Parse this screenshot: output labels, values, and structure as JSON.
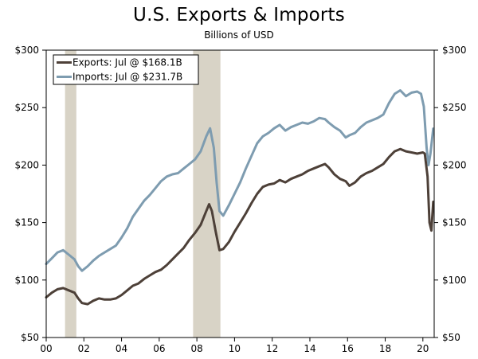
{
  "chart_data": {
    "type": "line",
    "title": "U.S. Exports & Imports",
    "subtitle": "Billions of USD",
    "xlabel": "",
    "ylabel": "",
    "xlim": [
      2000,
      2020.6
    ],
    "ylim": [
      50,
      300
    ],
    "x_ticks": [
      {
        "value": 2000,
        "label": "00"
      },
      {
        "value": 2002,
        "label": "02"
      },
      {
        "value": 2004,
        "label": "04"
      },
      {
        "value": 2006,
        "label": "06"
      },
      {
        "value": 2008,
        "label": "08"
      },
      {
        "value": 2010,
        "label": "10"
      },
      {
        "value": 2012,
        "label": "12"
      },
      {
        "value": 2014,
        "label": "14"
      },
      {
        "value": 2016,
        "label": "16"
      },
      {
        "value": 2018,
        "label": "18"
      },
      {
        "value": 2020,
        "label": "20"
      }
    ],
    "y_ticks": [
      {
        "value": 50,
        "label": "$50"
      },
      {
        "value": 100,
        "label": "$100"
      },
      {
        "value": 150,
        "label": "$150"
      },
      {
        "value": 200,
        "label": "$200"
      },
      {
        "value": 250,
        "label": "$250"
      },
      {
        "value": 300,
        "label": "$300"
      }
    ],
    "recessions": [
      [
        2001.0,
        2001.6
      ],
      [
        2007.8,
        2009.25
      ]
    ],
    "legend_position": "top-left",
    "series": [
      {
        "name": "Exports",
        "legend": "Exports: Jul @ $168.1B",
        "color": "#4d4038",
        "x": [
          2000.0,
          2000.3,
          2000.6,
          2000.9,
          2001.2,
          2001.5,
          2001.7,
          2001.9,
          2002.2,
          2002.5,
          2002.8,
          2003.1,
          2003.4,
          2003.7,
          2004.0,
          2004.3,
          2004.6,
          2004.9,
          2005.2,
          2005.5,
          2005.8,
          2006.1,
          2006.4,
          2006.7,
          2007.0,
          2007.3,
          2007.6,
          2007.9,
          2008.2,
          2008.5,
          2008.65,
          2008.8,
          2009.0,
          2009.2,
          2009.4,
          2009.7,
          2010.0,
          2010.3,
          2010.6,
          2010.9,
          2011.2,
          2011.5,
          2011.8,
          2012.1,
          2012.4,
          2012.7,
          2013.0,
          2013.3,
          2013.6,
          2013.9,
          2014.2,
          2014.5,
          2014.8,
          2015.0,
          2015.3,
          2015.6,
          2015.9,
          2016.1,
          2016.4,
          2016.7,
          2017.0,
          2017.3,
          2017.6,
          2017.9,
          2018.2,
          2018.5,
          2018.8,
          2019.1,
          2019.4,
          2019.7,
          2020.0,
          2020.1,
          2020.25,
          2020.35,
          2020.45,
          2020.55
        ],
        "values": [
          85,
          89,
          92,
          93,
          91,
          89,
          84,
          80,
          79,
          82,
          84,
          83,
          83,
          84,
          87,
          91,
          95,
          97,
          101,
          104,
          107,
          109,
          113,
          118,
          123,
          128,
          135,
          141,
          148,
          160,
          166,
          160,
          142,
          126,
          127,
          133,
          142,
          150,
          158,
          167,
          175,
          181,
          183,
          184,
          187,
          185,
          188,
          190,
          192,
          195,
          197,
          199,
          201,
          198,
          192,
          188,
          186,
          182,
          185,
          190,
          193,
          195,
          198,
          201,
          207,
          212,
          214,
          212,
          211,
          210,
          211,
          210,
          190,
          150,
          143,
          168.1
        ]
      },
      {
        "name": "Imports",
        "legend": "Imports: Jul @ $231.7B",
        "color": "#7e9cb0",
        "x": [
          2000.0,
          2000.3,
          2000.6,
          2000.9,
          2001.2,
          2001.5,
          2001.7,
          2001.9,
          2002.2,
          2002.5,
          2002.8,
          2003.1,
          2003.4,
          2003.7,
          2004.0,
          2004.3,
          2004.6,
          2004.9,
          2005.2,
          2005.5,
          2005.8,
          2006.1,
          2006.4,
          2006.7,
          2007.0,
          2007.3,
          2007.6,
          2007.9,
          2008.2,
          2008.5,
          2008.7,
          2008.9,
          2009.05,
          2009.2,
          2009.4,
          2009.7,
          2010.0,
          2010.3,
          2010.6,
          2010.9,
          2011.2,
          2011.5,
          2011.8,
          2012.1,
          2012.4,
          2012.7,
          2013.0,
          2013.3,
          2013.6,
          2013.9,
          2014.2,
          2014.5,
          2014.8,
          2015.0,
          2015.3,
          2015.6,
          2015.9,
          2016.1,
          2016.4,
          2016.7,
          2017.0,
          2017.3,
          2017.6,
          2017.9,
          2018.2,
          2018.5,
          2018.8,
          2019.1,
          2019.4,
          2019.7,
          2019.9,
          2020.05,
          2020.2,
          2020.3,
          2020.4,
          2020.55
        ],
        "values": [
          114,
          119,
          124,
          126,
          122,
          118,
          112,
          108,
          112,
          117,
          121,
          124,
          127,
          130,
          137,
          145,
          155,
          162,
          169,
          174,
          180,
          186,
          190,
          192,
          193,
          197,
          201,
          205,
          212,
          225,
          232,
          215,
          185,
          160,
          156,
          165,
          175,
          185,
          197,
          208,
          219,
          225,
          228,
          232,
          235,
          230,
          233,
          235,
          237,
          236,
          238,
          241,
          240,
          237,
          233,
          230,
          224,
          226,
          228,
          233,
          237,
          239,
          241,
          244,
          254,
          262,
          265,
          260,
          263,
          264,
          262,
          251,
          215,
          200,
          210,
          231.7
        ]
      }
    ]
  }
}
